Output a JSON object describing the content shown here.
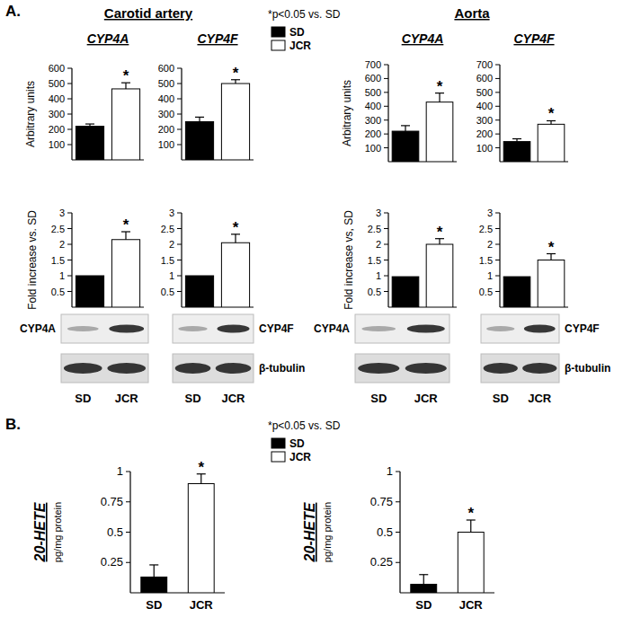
{
  "figure": {
    "groups": [
      "Carotid artery",
      "Aorta"
    ],
    "panels": [
      {
        "label": "A.",
        "note": "*p<0.05 vs. SD",
        "legend_items": [
          {
            "name": "SD",
            "color": "#000000"
          },
          {
            "name": "JCR",
            "color": "#ffffff"
          }
        ]
      },
      {
        "label": "B.",
        "note": "*p<0.05 vs. SD",
        "legend_items": [
          {
            "name": "SD",
            "color": "#000000"
          },
          {
            "name": "JCR",
            "color": "#ffffff"
          }
        ]
      }
    ]
  },
  "blots": [
    {
      "band": "CYP4A",
      "lanes": [
        "SD",
        "JCR"
      ]
    },
    {
      "band": "CYP4F",
      "loading": "β-tubulin",
      "lanes": [
        "SD",
        "JCR"
      ]
    },
    {
      "band": "CYP4A",
      "lanes": [
        "SD",
        "JCR"
      ]
    },
    {
      "band": "CYP4F",
      "loading": "β-tubulin",
      "lanes": [
        "SD",
        "JCR"
      ]
    }
  ],
  "chart_data": [
    {
      "type": "bar",
      "title": "CYP4A",
      "y_label": "Arbitrary units",
      "categories": [
        null,
        null
      ],
      "values": [
        220,
        465
      ],
      "errors": [
        15,
        40
      ],
      "colors": [
        "#000000",
        "#ffffff"
      ],
      "ylim": [
        0,
        600
      ],
      "yticks": [
        100,
        200,
        300,
        400,
        500,
        600
      ],
      "annotation": {
        "text": "*",
        "category_index": 1
      }
    },
    {
      "type": "bar",
      "title": "CYP4F",
      "categories": [
        null,
        null
      ],
      "values": [
        250,
        500
      ],
      "errors": [
        30,
        25
      ],
      "colors": [
        "#000000",
        "#ffffff"
      ],
      "ylim": [
        0,
        600
      ],
      "yticks": [
        100,
        200,
        300,
        400,
        500,
        600
      ],
      "annotation": {
        "text": "*",
        "category_index": 1
      }
    },
    {
      "type": "bar",
      "title": "CYP4A",
      "y_label": "Arbitrary units",
      "categories": [
        null,
        null
      ],
      "values": [
        220,
        430
      ],
      "errors": [
        40,
        65
      ],
      "colors": [
        "#000000",
        "#ffffff"
      ],
      "ylim": [
        0,
        700
      ],
      "yticks": [
        100,
        200,
        300,
        400,
        500,
        600,
        700
      ],
      "annotation": {
        "text": "*",
        "category_index": 1
      }
    },
    {
      "type": "bar",
      "title": "CYP4F",
      "categories": [
        null,
        null
      ],
      "values": [
        145,
        270
      ],
      "errors": [
        20,
        25
      ],
      "colors": [
        "#000000",
        "#ffffff"
      ],
      "ylim": [
        0,
        700
      ],
      "yticks": [
        100,
        200,
        300,
        400,
        500,
        600,
        700
      ],
      "annotation": {
        "text": "*",
        "category_index": 1
      }
    },
    {
      "type": "bar",
      "y_label": "Fold increase vs. SD",
      "categories": [
        null,
        null
      ],
      "values": [
        1,
        2.15
      ],
      "errors": [
        null,
        0.25
      ],
      "colors": [
        "#000000",
        "#ffffff"
      ],
      "ylim": [
        0,
        3
      ],
      "yticks": [
        0.5,
        1,
        1.5,
        2,
        2.5,
        3
      ],
      "annotation": {
        "text": "*",
        "category_index": 1
      }
    },
    {
      "type": "bar",
      "categories": [
        null,
        null
      ],
      "values": [
        1,
        2.05
      ],
      "errors": [
        null,
        0.27
      ],
      "colors": [
        "#000000",
        "#ffffff"
      ],
      "ylim": [
        0,
        3
      ],
      "yticks": [
        0.5,
        1,
        1.5,
        2,
        2.5,
        3
      ],
      "annotation": {
        "text": "*",
        "category_index": 1
      }
    },
    {
      "type": "bar",
      "y_label": "Fold increase vs, SD",
      "categories": [
        null,
        null
      ],
      "values": [
        0.97,
        2.0
      ],
      "errors": [
        null,
        0.18
      ],
      "colors": [
        "#000000",
        "#ffffff"
      ],
      "ylim": [
        0,
        3
      ],
      "yticks": [
        0.5,
        1,
        1.5,
        2,
        2.5,
        3
      ],
      "annotation": {
        "text": "*",
        "category_index": 1
      }
    },
    {
      "type": "bar",
      "categories": [
        null,
        null
      ],
      "values": [
        0.97,
        1.5
      ],
      "errors": [
        null,
        0.2
      ],
      "colors": [
        "#000000",
        "#ffffff"
      ],
      "ylim": [
        0,
        3
      ],
      "yticks": [
        0.5,
        1,
        1.5,
        2,
        2.5,
        3
      ],
      "annotation": {
        "text": "*",
        "category_index": 1
      }
    },
    {
      "type": "bar",
      "y_label": "20-HETE",
      "y_sublabel": "pg/mg protein",
      "categories": [
        "SD",
        "JCR"
      ],
      "values": [
        0.13,
        0.9
      ],
      "errors": [
        0.1,
        0.08
      ],
      "colors": [
        "#000000",
        "#ffffff"
      ],
      "ylim": [
        0,
        1
      ],
      "yticks": [
        0.25,
        0.5,
        0.75,
        1
      ],
      "annotation": {
        "text": "*",
        "category_index": 1
      }
    },
    {
      "type": "bar",
      "y_label": "20-HETE",
      "y_sublabel": "pg/mg protein",
      "categories": [
        "SD",
        "JCR"
      ],
      "values": [
        0.07,
        0.5
      ],
      "errors": [
        0.08,
        0.1
      ],
      "colors": [
        "#000000",
        "#ffffff"
      ],
      "ylim": [
        0,
        1
      ],
      "yticks": [
        0.25,
        0.5,
        0.75,
        1
      ],
      "annotation": {
        "text": "*",
        "category_index": 1
      }
    }
  ]
}
